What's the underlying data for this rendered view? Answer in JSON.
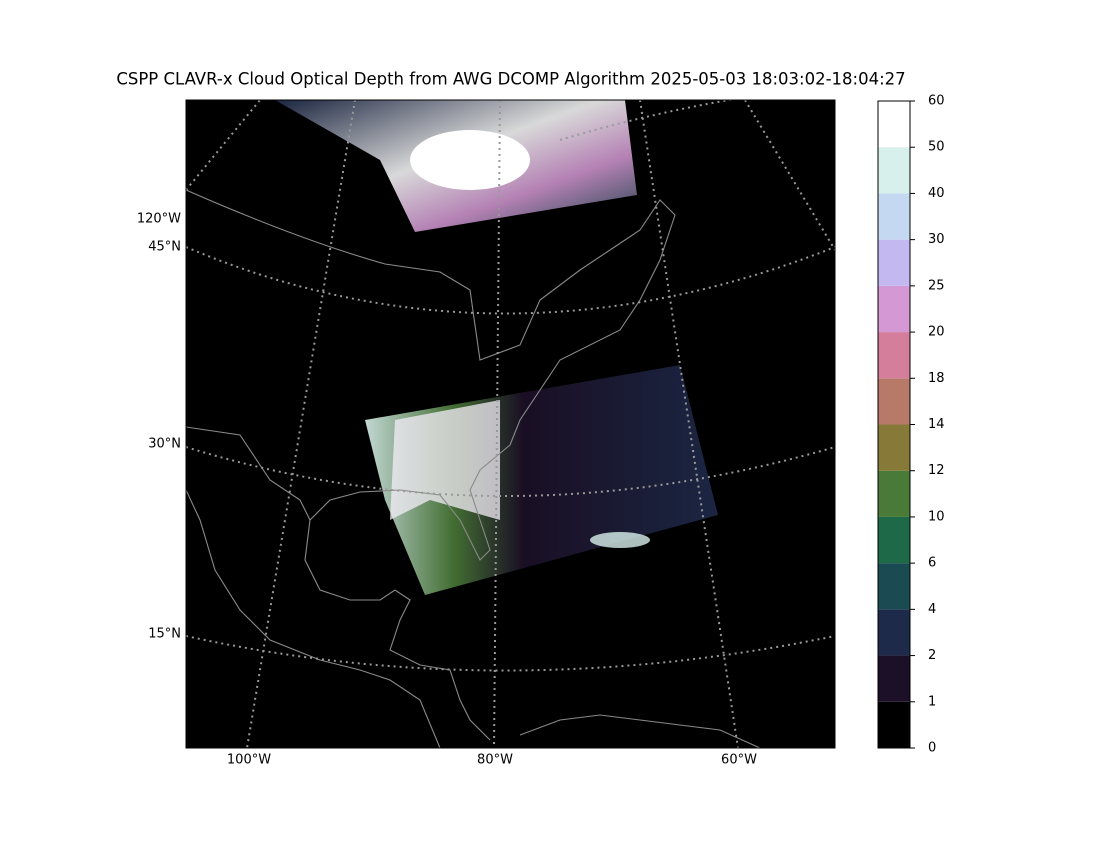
{
  "title": "CSPP CLAVR-x Cloud Optical Depth from AWG DCOMP Algorithm 2025-05-03 18:03:02-18:04:27",
  "map": {
    "left_labels": [
      "120°W",
      "45°N",
      "30°N",
      "15°N"
    ],
    "bottom_labels": [
      "100°W",
      "80°W",
      "60°W"
    ]
  },
  "colorbar": {
    "boundaries": [
      0,
      1,
      2,
      4,
      6,
      10,
      12,
      14,
      18,
      20,
      25,
      30,
      40,
      50,
      60
    ],
    "colors": [
      "#000000",
      "#1c1028",
      "#1e2a4a",
      "#1a4a52",
      "#1e6a48",
      "#4a7a38",
      "#877a38",
      "#b87a68",
      "#d47e9c",
      "#d498d4",
      "#c4b8f0",
      "#c4d8f2",
      "#d8f0ec",
      "#ffffff"
    ]
  }
}
